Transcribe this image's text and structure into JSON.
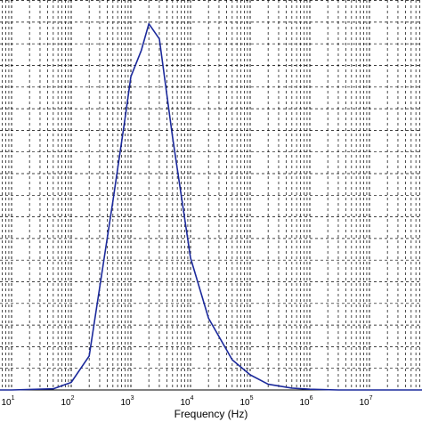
{
  "chart_data": {
    "type": "line",
    "title": "",
    "xlabel": "Frequency (Hz)",
    "ylabel": "",
    "x_scale": "log",
    "xlim": [
      1,
      100000000
    ],
    "ylim": [
      0,
      1
    ],
    "grid": true,
    "grid_style": "dashed",
    "x_ticks": [
      {
        "base": "10",
        "exp": "1",
        "value": 10
      },
      {
        "base": "10",
        "exp": "2",
        "value": 100
      },
      {
        "base": "10",
        "exp": "3",
        "value": 1000
      },
      {
        "base": "10",
        "exp": "4",
        "value": 10000
      },
      {
        "base": "10",
        "exp": "5",
        "value": 100000
      },
      {
        "base": "10",
        "exp": "6",
        "value": 1000000
      },
      {
        "base": "10",
        "exp": "7",
        "value": 10000000
      }
    ],
    "series": [
      {
        "color": "#1c2a9c",
        "x": [
          1,
          10,
          50,
          100,
          200,
          500,
          800,
          1000,
          1500,
          2000,
          3000,
          5000,
          10000,
          20000,
          50000,
          100000,
          200000,
          500000,
          1000000,
          3000000,
          10000000,
          100000000
        ],
        "y": [
          0.0,
          0.0,
          0.003,
          0.02,
          0.09,
          0.5,
          0.72,
          0.83,
          0.9,
          0.97,
          0.93,
          0.67,
          0.35,
          0.19,
          0.08,
          0.04,
          0.015,
          0.005,
          0.002,
          0.0,
          0.0,
          0.0
        ]
      }
    ]
  }
}
